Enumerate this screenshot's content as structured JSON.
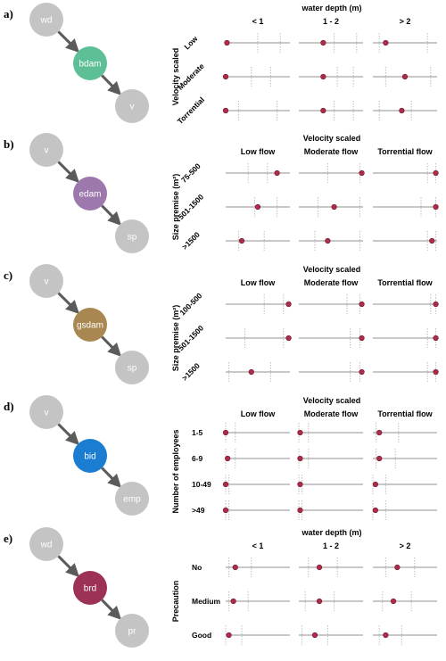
{
  "colors": {
    "node_grey": "#c4c4c4",
    "arrow": "#5b5b5b",
    "point": "#b02a49",
    "hline": "#a8a8a8",
    "vdash": "#bdbdbd"
  },
  "panels": [
    {
      "label": "a)",
      "nodes": [
        {
          "text": "wd",
          "color": "#c4c4c4"
        },
        {
          "text": "bdam",
          "color": "#5dbf96"
        },
        {
          "text": "v",
          "color": "#c4c4c4"
        }
      ],
      "header_title": "water depth (m)",
      "columns": [
        "< 1",
        "1 - 2",
        "> 2"
      ],
      "row_title": "Velocity scaled",
      "rows": [
        "Low",
        "Moderate",
        "Torrential"
      ],
      "rotated_rows": true,
      "points": [
        [
          0.02,
          0.0,
          0.0
        ],
        [
          0.38,
          0.38,
          0.38
        ],
        [
          0.2,
          0.5,
          0.45
        ]
      ],
      "dashes": [
        [
          [
            0.5,
            0.85
          ],
          [
            0.4,
            0.7
          ],
          [
            0.2,
            0.8
          ]
        ],
        [
          [
            0.55,
            0.9
          ],
          [
            0.6,
            0.85
          ],
          [
            0.55,
            0.85
          ]
        ],
        [
          [
            0.1,
            0.85
          ],
          [
            0.2,
            0.9
          ],
          [
            0.1,
            0.6
          ]
        ]
      ]
    },
    {
      "label": "b)",
      "nodes": [
        {
          "text": "v",
          "color": "#c4c4c4"
        },
        {
          "text": "edam",
          "color": "#9d78ad"
        },
        {
          "text": "sp",
          "color": "#c4c4c4"
        }
      ],
      "header_title": "Velocity scaled",
      "columns": [
        "Low flow",
        "Moderate flow",
        "Torrential flow"
      ],
      "row_title": "Size premise (m²)",
      "rows": [
        "75-500",
        "501-1500",
        ">1500"
      ],
      "rotated_rows": true,
      "points": [
        [
          0.8,
          0.5,
          0.25
        ],
        [
          0.98,
          0.55,
          0.45
        ],
        [
          0.98,
          0.98,
          0.92
        ]
      ],
      "dashes": [
        [
          [
            0.35,
            0.65
          ],
          [
            0.45,
            0.8
          ],
          [
            0.2,
            0.6
          ]
        ],
        [
          [
            0.45,
            0.95
          ],
          [
            0.3,
            0.95
          ],
          [
            0.25,
            0.95
          ]
        ],
        [
          [
            0.85,
            0.98
          ],
          [
            0.75,
            0.98
          ],
          [
            0.85,
            0.98
          ]
        ]
      ]
    },
    {
      "label": "c)",
      "nodes": [
        {
          "text": "v",
          "color": "#c4c4c4"
        },
        {
          "text": "gsdam",
          "color": "#a88850"
        },
        {
          "text": "sp",
          "color": "#c4c4c4"
        }
      ],
      "header_title": "Velocity scaled",
      "columns": [
        "Low flow",
        "Moderate flow",
        "Torrential flow"
      ],
      "row_title": "Size premise (m²)",
      "rows": [
        "100-500",
        "501-1500",
        ">1500"
      ],
      "rotated_rows": true,
      "points": [
        [
          0.98,
          0.98,
          0.4
        ],
        [
          0.98,
          0.98,
          0.98
        ],
        [
          0.98,
          0.98,
          0.98
        ]
      ],
      "dashes": [
        [
          [
            0.6,
            0.9
          ],
          [
            0.3,
            0.9
          ],
          [
            0.05,
            0.7
          ]
        ],
        [
          [
            0.75,
            0.95
          ],
          [
            0.8,
            0.95
          ],
          [
            0.8,
            0.95
          ]
        ],
        [
          [
            0.9,
            0.98
          ],
          [
            0.85,
            0.98
          ],
          [
            0.85,
            0.98
          ]
        ]
      ]
    },
    {
      "label": "d)",
      "nodes": [
        {
          "text": "v",
          "color": "#c4c4c4"
        },
        {
          "text": "bid",
          "color": "#1a7dd1"
        },
        {
          "text": "emp",
          "color": "#c4c4c4"
        }
      ],
      "header_title": "Velocity scaled",
      "columns": [
        "Low flow",
        "Moderate flow",
        "Torrential flow"
      ],
      "row_title": "Number of employees",
      "rows": [
        "1-5",
        "6-9",
        "10-49",
        ">49"
      ],
      "rotated_rows": false,
      "points": [
        [
          0.0,
          0.03,
          0.0,
          0.0
        ],
        [
          0.02,
          0.02,
          0.02,
          0.02
        ],
        [
          0.1,
          0.1,
          0.04,
          0.04
        ]
      ],
      "dashes": [
        [
          [
            0.0,
            0.15
          ],
          [
            0.0,
            0.15
          ],
          [
            0.0,
            0.05
          ],
          [
            0.0,
            0.05
          ]
        ],
        [
          [
            0.0,
            0.15
          ],
          [
            0.0,
            0.15
          ],
          [
            0.0,
            0.05
          ],
          [
            0.0,
            0.05
          ]
        ],
        [
          [
            0.05,
            0.4
          ],
          [
            0.05,
            0.35
          ],
          [
            0.0,
            0.2
          ],
          [
            0.0,
            0.2
          ]
        ]
      ]
    },
    {
      "label": "e)",
      "nodes": [
        {
          "text": "wd",
          "color": "#c4c4c4"
        },
        {
          "text": "brd",
          "color": "#9c3357"
        },
        {
          "text": "pr",
          "color": "#c4c4c4"
        }
      ],
      "header_title": "water depth (m)",
      "columns": [
        "< 1",
        "1 - 2",
        "> 2"
      ],
      "row_title": "Precaution",
      "rows": [
        "No",
        "Medium",
        "Good"
      ],
      "rotated_rows": false,
      "points": [
        [
          0.15,
          0.12,
          0.05
        ],
        [
          0.32,
          0.32,
          0.25
        ],
        [
          0.38,
          0.32,
          0.2
        ]
      ],
      "dashes": [
        [
          [
            0.05,
            0.4
          ],
          [
            0.05,
            0.35
          ],
          [
            0.0,
            0.25
          ]
        ],
        [
          [
            0.15,
            0.6
          ],
          [
            0.1,
            0.55
          ],
          [
            0.05,
            0.45
          ]
        ],
        [
          [
            0.2,
            0.65
          ],
          [
            0.15,
            0.6
          ],
          [
            0.1,
            0.45
          ]
        ]
      ]
    }
  ]
}
